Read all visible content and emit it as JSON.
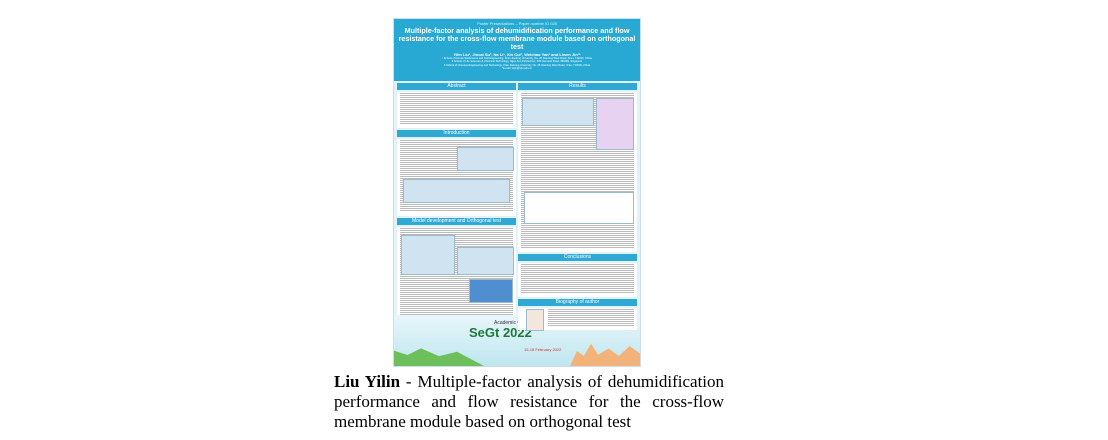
{
  "poster": {
    "session": "Poster Presentations – Paper number ID 025",
    "title": "Multiple-factor analysis of dehumidification performance and flow resistance for the cross-flow membrane module based on orthogonal test",
    "authors": "Yilin Liu¹, Jincai Su², Na Li³, Xin Cui², Weichao Yan¹ and Liwen Jin¹*",
    "affiliations": [
      "¹ School of Human Settlements and Civil Engineering, Xi'an Jiaotong University, No. 28 Xianning West Road, Xi'an, 710049, China",
      "2 School of Life Sciences & Chemical Technology, Ngee Ann Polytechnic, 535 Clementi Road, 599489, Singapore",
      "3 School of Chemical Engineering and Technology, Xi'an Jiaotong University, No. 28 Xianning West Road, Xi'an, 710049, China"
    ],
    "email": "*E-mail: lwjin@xjtu.edu.cn",
    "sections_left": [
      "Abstract",
      "Introduction",
      "Model development and Orthogonal test"
    ],
    "sections_right": [
      "Results",
      "Conclusions",
      "Biography of author"
    ],
    "footer": {
      "small": "Academic Conference on",
      "name": "SeGt 2022",
      "dates": "15-18 February 2022"
    }
  },
  "caption": {
    "author": "Liu Yilin",
    "text": " - Multiple-factor analysis of dehumidification performance and flow resistance for the cross-flow membrane module based on orthogonal test"
  }
}
